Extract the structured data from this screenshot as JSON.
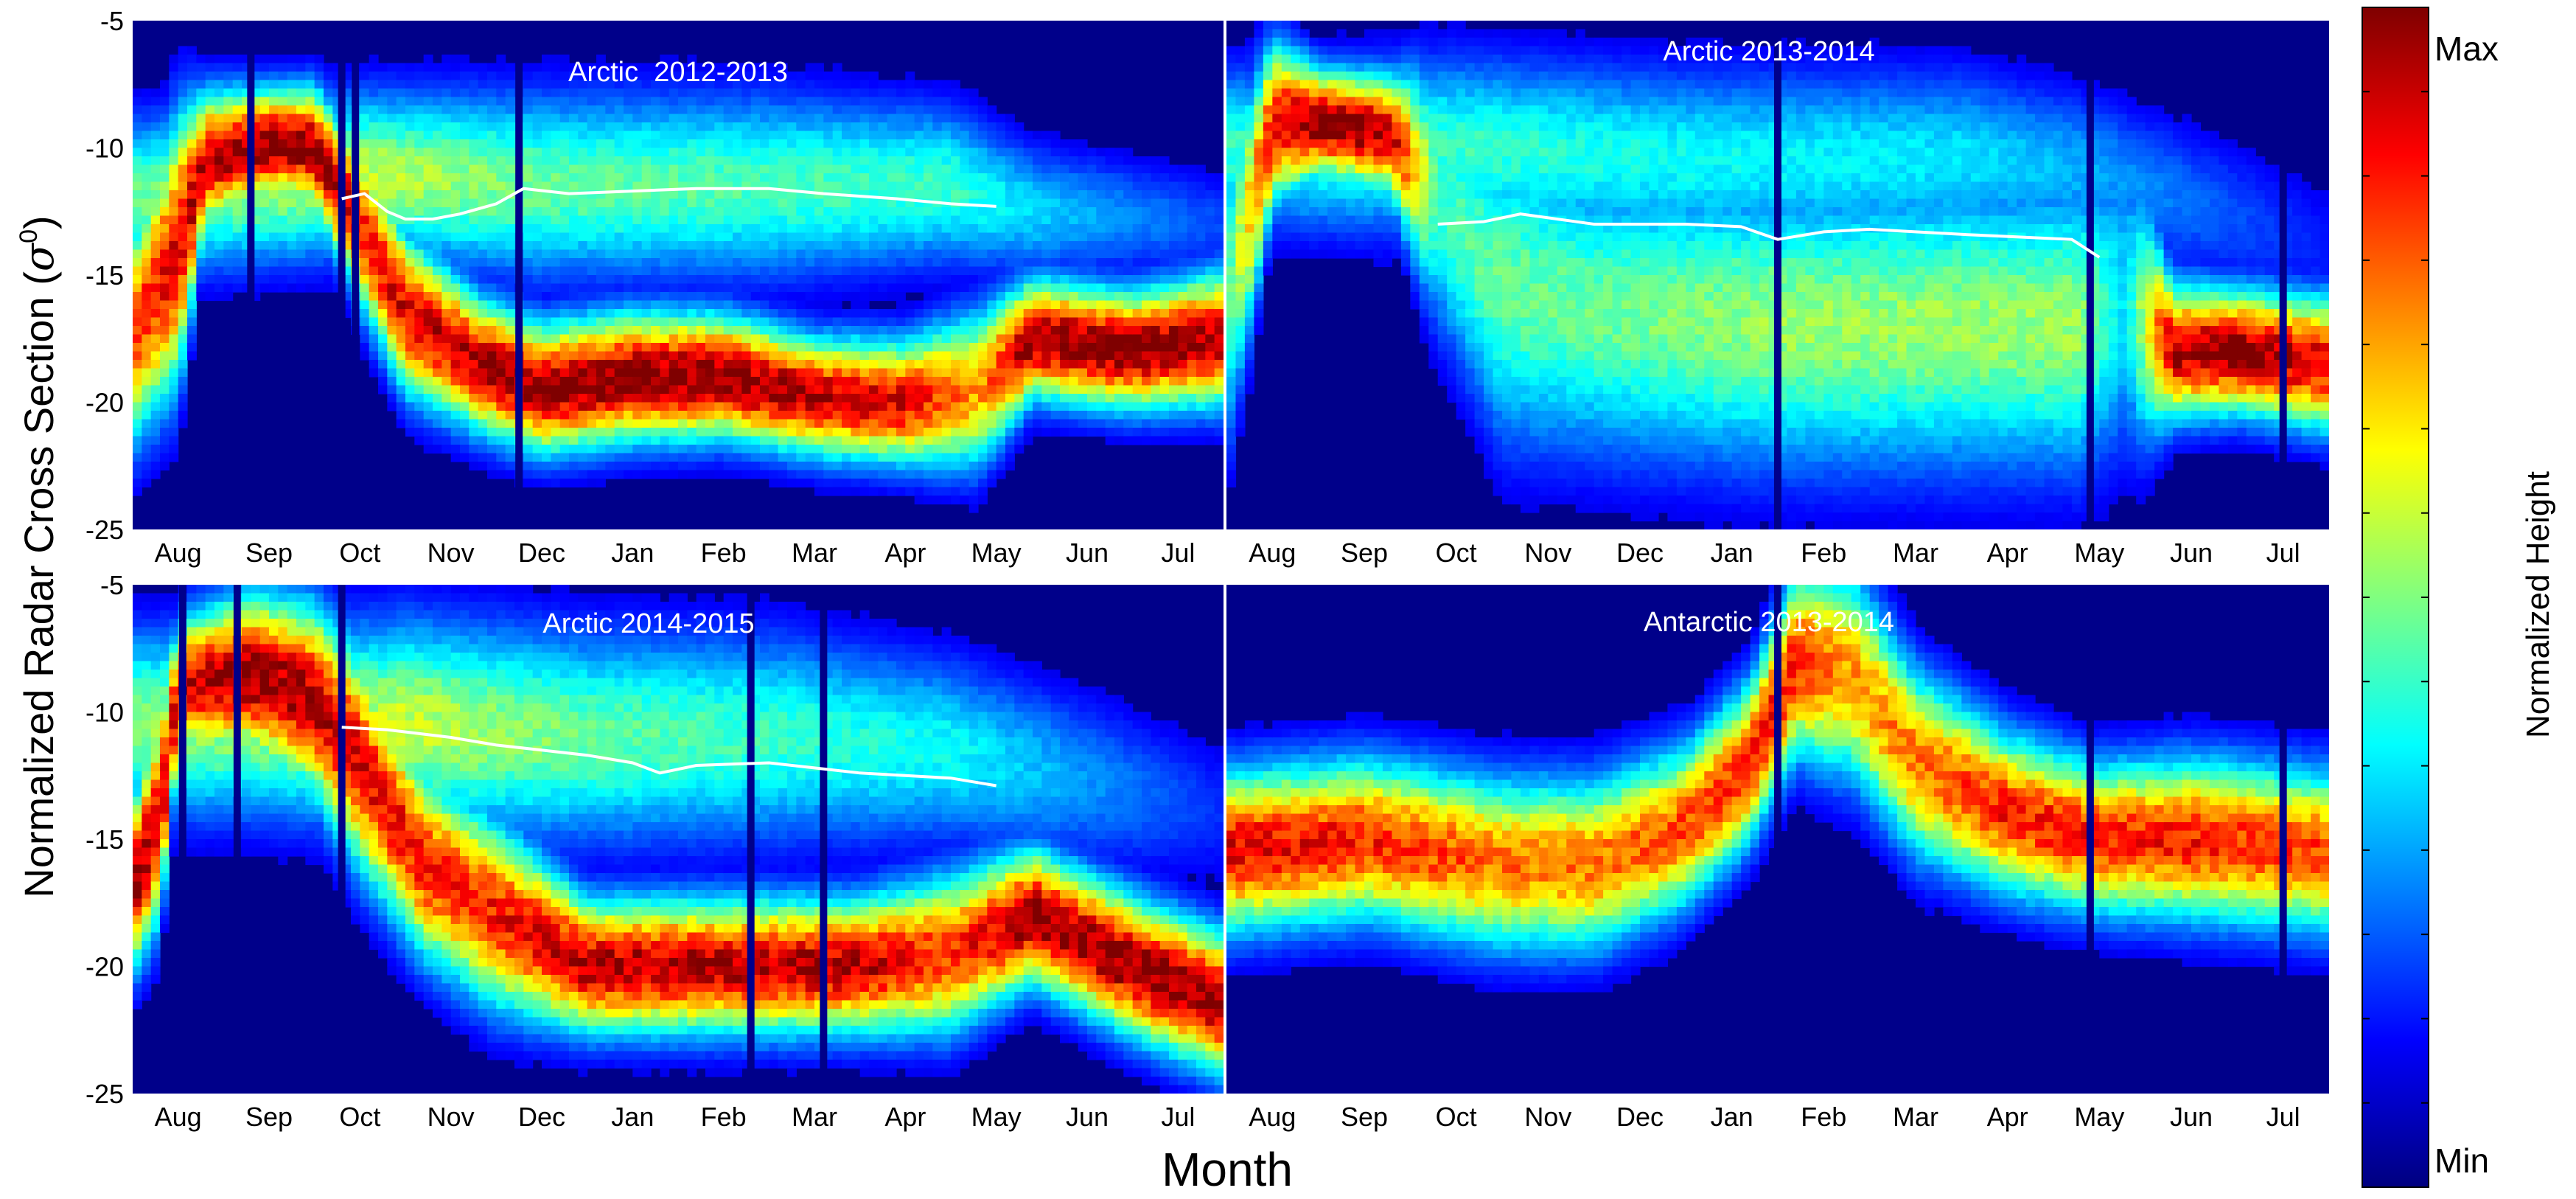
{
  "figure": {
    "ylabel": "Normalized Radar Cross Section (σ⁰)",
    "ylabel_main": "Normalized Radar Cross Section (",
    "ylabel_sigma": "σ",
    "ylabel_sup": "0",
    "ylabel_close": ")",
    "xlabel": "Month",
    "colorbar": {
      "label": "Normalized Height",
      "max_label": "Max",
      "min_label": "Min",
      "stops": [
        "#00007f",
        "#0000ff",
        "#0080ff",
        "#00ffff",
        "#80ff80",
        "#ffff00",
        "#ff8000",
        "#ff0000",
        "#7f0000"
      ]
    },
    "colors": {
      "background": "#00008a",
      "median_line": "#ffffff",
      "separator": "#ffffff"
    }
  },
  "chart_data": [
    {
      "type": "heatmap",
      "title": "Arctic  2012-2013",
      "x_tick_labels": [
        "Aug",
        "Sep",
        "Oct",
        "Nov",
        "Dec",
        "Jan",
        "Feb",
        "Mar",
        "Apr",
        "May",
        "Jun",
        "Jul"
      ],
      "y_tick_labels": [
        "-5",
        "-10",
        "-15",
        "-20",
        "-25"
      ],
      "ylim": [
        -25,
        -5
      ],
      "xlim_months": [
        0,
        12
      ],
      "show_y_ticks": true,
      "show_x_ticks": true,
      "gaps": [
        1.3,
        2.3,
        2.45,
        4.25
      ],
      "band": [
        {
          "m": 0.0,
          "c": -17.5,
          "w": 4.0,
          "a": 0.8
        },
        {
          "m": 0.5,
          "c": -14.0,
          "w": 5.0,
          "a": 0.9
        },
        {
          "m": 0.8,
          "c": -10.5,
          "w": 2.5,
          "a": 0.95
        },
        {
          "m": 1.5,
          "c": -9.8,
          "w": 2.0,
          "a": 1.0
        },
        {
          "m": 2.0,
          "c": -10.0,
          "w": 2.2,
          "a": 1.0
        },
        {
          "m": 2.5,
          "c": -13.0,
          "w": 3.0,
          "a": 0.85
        },
        {
          "m": 3.0,
          "c": -16.5,
          "w": 3.0,
          "a": 0.9
        },
        {
          "m": 3.8,
          "c": -18.5,
          "w": 2.5,
          "a": 0.95
        },
        {
          "m": 4.5,
          "c": -19.5,
          "w": 2.4,
          "a": 1.0
        },
        {
          "m": 5.5,
          "c": -19.0,
          "w": 2.4,
          "a": 1.0
        },
        {
          "m": 6.5,
          "c": -19.0,
          "w": 2.3,
          "a": 1.0
        },
        {
          "m": 7.5,
          "c": -19.8,
          "w": 2.2,
          "a": 0.95
        },
        {
          "m": 8.5,
          "c": -20.0,
          "w": 2.3,
          "a": 0.9
        },
        {
          "m": 9.3,
          "c": -19.5,
          "w": 3.0,
          "a": 0.7
        },
        {
          "m": 9.9,
          "c": -17.5,
          "w": 2.2,
          "a": 1.0
        },
        {
          "m": 11.0,
          "c": -18.0,
          "w": 2.2,
          "a": 1.0
        },
        {
          "m": 12.0,
          "c": -17.5,
          "w": 2.5,
          "a": 0.95
        }
      ],
      "upper": [
        {
          "m": 0.0,
          "c": -12.0,
          "w": 3.0,
          "a": 0.45
        },
        {
          "m": 2.5,
          "c": -11.0,
          "w": 3.0,
          "a": 0.55
        },
        {
          "m": 4.5,
          "c": -11.5,
          "w": 3.5,
          "a": 0.45
        },
        {
          "m": 7.0,
          "c": -11.5,
          "w": 3.5,
          "a": 0.42
        },
        {
          "m": 9.0,
          "c": -11.5,
          "w": 3.0,
          "a": 0.4
        },
        {
          "m": 9.9,
          "c": -12.5,
          "w": 2.5,
          "a": 0.3
        },
        {
          "m": 12.0,
          "c": -13.0,
          "w": 2.0,
          "a": 0.15
        }
      ],
      "median": {
        "months": [
          2.3,
          2.55,
          2.8,
          3.0,
          3.3,
          3.6,
          4.0,
          4.3,
          4.8,
          5.5,
          6.2,
          7.0,
          7.6,
          8.4,
          9.0,
          9.5
        ],
        "values": [
          -12.0,
          -11.8,
          -12.5,
          -12.8,
          -12.8,
          -12.6,
          -12.2,
          -11.6,
          -11.8,
          -11.7,
          -11.6,
          -11.6,
          -11.8,
          -12.0,
          -12.2,
          -12.3
        ]
      }
    },
    {
      "type": "heatmap",
      "title": "Arctic 2013-2014",
      "x_tick_labels": [
        "Aug",
        "Sep",
        "Oct",
        "Nov",
        "Dec",
        "Jan",
        "Feb",
        "Mar",
        "Apr",
        "May",
        "Jun",
        "Jul"
      ],
      "y_tick_labels": [],
      "ylim": [
        -25,
        -5
      ],
      "xlim_months": [
        0,
        12
      ],
      "show_y_ticks": false,
      "show_x_ticks": true,
      "gaps": [
        6.0,
        9.4,
        11.5
      ],
      "band": [
        {
          "m": 0.0,
          "c": -16.0,
          "w": 6.0,
          "a": 0.4
        },
        {
          "m": 0.5,
          "c": -9.0,
          "w": 3.0,
          "a": 0.9
        },
        {
          "m": 1.0,
          "c": -9.0,
          "w": 2.0,
          "a": 1.0
        },
        {
          "m": 1.8,
          "c": -9.5,
          "w": 2.2,
          "a": 0.95
        },
        {
          "m": 2.3,
          "c": -12.0,
          "w": 5.0,
          "a": 0.4
        },
        {
          "m": 3.0,
          "c": -15.5,
          "w": 6.0,
          "a": 0.45
        },
        {
          "m": 4.0,
          "c": -16.5,
          "w": 5.5,
          "a": 0.45
        },
        {
          "m": 6.0,
          "c": -17.0,
          "w": 5.5,
          "a": 0.5
        },
        {
          "m": 8.0,
          "c": -17.0,
          "w": 5.5,
          "a": 0.5
        },
        {
          "m": 9.3,
          "c": -17.0,
          "w": 5.5,
          "a": 0.5
        },
        {
          "m": 9.8,
          "c": -16.0,
          "w": 6.0,
          "a": 0.3
        },
        {
          "m": 10.3,
          "c": -18.0,
          "w": 2.5,
          "a": 0.95
        },
        {
          "m": 11.0,
          "c": -18.0,
          "w": 2.3,
          "a": 1.0
        },
        {
          "m": 12.0,
          "c": -18.5,
          "w": 2.5,
          "a": 0.9
        }
      ],
      "upper": [
        {
          "m": 0.3,
          "c": -10.0,
          "w": 3.0,
          "a": 0.4
        },
        {
          "m": 2.5,
          "c": -10.0,
          "w": 3.5,
          "a": 0.4
        },
        {
          "m": 5.0,
          "c": -10.5,
          "w": 3.5,
          "a": 0.35
        },
        {
          "m": 8.0,
          "c": -10.5,
          "w": 3.5,
          "a": 0.32
        },
        {
          "m": 9.5,
          "c": -11.0,
          "w": 3.0,
          "a": 0.25
        },
        {
          "m": 12.0,
          "c": -14.0,
          "w": 3.0,
          "a": 0.1
        }
      ],
      "median": {
        "months": [
          2.3,
          2.8,
          3.2,
          4.0,
          5.0,
          5.6,
          6.0,
          6.5,
          7.0,
          7.5,
          8.0,
          8.6,
          9.2,
          9.5
        ],
        "values": [
          -13.0,
          -12.9,
          -12.6,
          -13.0,
          -13.0,
          -13.1,
          -13.6,
          -13.3,
          -13.2,
          -13.3,
          -13.4,
          -13.5,
          -13.6,
          -14.3
        ]
      }
    },
    {
      "type": "heatmap",
      "title": "Arctic 2014-2015",
      "x_tick_labels": [
        "Aug",
        "Sep",
        "Oct",
        "Nov",
        "Dec",
        "Jan",
        "Feb",
        "Mar",
        "Apr",
        "May",
        "Jun",
        "Jul"
      ],
      "y_tick_labels": [
        "-5",
        "-10",
        "-15",
        "-20",
        "-25"
      ],
      "ylim": [
        -25,
        -5
      ],
      "xlim_months": [
        0,
        12
      ],
      "show_y_ticks": true,
      "show_x_ticks": true,
      "gaps": [
        0.55,
        1.15,
        2.3,
        6.8,
        7.6
      ],
      "band": [
        {
          "m": 0.0,
          "c": -17.0,
          "w": 3.0,
          "a": 1.0
        },
        {
          "m": 0.3,
          "c": -14.0,
          "w": 4.0,
          "a": 0.9
        },
        {
          "m": 0.5,
          "c": -9.0,
          "w": 2.5,
          "a": 0.9
        },
        {
          "m": 1.3,
          "c": -8.5,
          "w": 3.0,
          "a": 1.0
        },
        {
          "m": 2.0,
          "c": -9.5,
          "w": 3.5,
          "a": 0.95
        },
        {
          "m": 2.5,
          "c": -12.0,
          "w": 4.0,
          "a": 0.9
        },
        {
          "m": 3.2,
          "c": -16.0,
          "w": 3.5,
          "a": 0.85
        },
        {
          "m": 4.0,
          "c": -18.0,
          "w": 3.5,
          "a": 0.85
        },
        {
          "m": 5.0,
          "c": -20.0,
          "w": 2.5,
          "a": 0.95
        },
        {
          "m": 6.5,
          "c": -20.0,
          "w": 2.5,
          "a": 0.95
        },
        {
          "m": 8.0,
          "c": -20.0,
          "w": 2.5,
          "a": 0.95
        },
        {
          "m": 9.0,
          "c": -19.5,
          "w": 3.0,
          "a": 0.8
        },
        {
          "m": 9.9,
          "c": -18.0,
          "w": 2.5,
          "a": 1.0
        },
        {
          "m": 11.0,
          "c": -20.0,
          "w": 2.6,
          "a": 1.0
        },
        {
          "m": 12.0,
          "c": -21.5,
          "w": 2.6,
          "a": 1.0
        }
      ],
      "upper": [
        {
          "m": 1.3,
          "c": -10.5,
          "w": 3.5,
          "a": 0.5
        },
        {
          "m": 3.0,
          "c": -10.5,
          "w": 4.0,
          "a": 0.55
        },
        {
          "m": 5.0,
          "c": -11.0,
          "w": 4.0,
          "a": 0.45
        },
        {
          "m": 7.0,
          "c": -11.0,
          "w": 4.0,
          "a": 0.4
        },
        {
          "m": 9.0,
          "c": -11.5,
          "w": 3.5,
          "a": 0.35
        },
        {
          "m": 12.0,
          "c": -14.0,
          "w": 3.0,
          "a": 0.12
        }
      ],
      "median": {
        "months": [
          2.3,
          2.8,
          3.5,
          4.0,
          4.5,
          5.0,
          5.5,
          5.8,
          6.2,
          7.0,
          7.5,
          8.0,
          8.5,
          9.0,
          9.5
        ],
        "values": [
          -10.6,
          -10.7,
          -11.0,
          -11.3,
          -11.5,
          -11.7,
          -12.0,
          -12.4,
          -12.1,
          -12.0,
          -12.2,
          -12.4,
          -12.5,
          -12.6,
          -12.9
        ]
      }
    },
    {
      "type": "heatmap",
      "title": "Antarctic 2013-2014",
      "x_tick_labels": [
        "Aug",
        "Sep",
        "Oct",
        "Nov",
        "Dec",
        "Jan",
        "Feb",
        "Mar",
        "Apr",
        "May",
        "Jun",
        "Jul"
      ],
      "y_tick_labels": [],
      "ylim": [
        -25,
        -5
      ],
      "xlim_months": [
        0,
        12
      ],
      "show_y_ticks": false,
      "show_x_ticks": true,
      "gaps": [
        6.0,
        9.4,
        11.5
      ],
      "band": [
        {
          "m": 0.0,
          "c": -15.5,
          "w": 3.0,
          "a": 0.9
        },
        {
          "m": 1.5,
          "c": -15.0,
          "w": 3.0,
          "a": 0.85
        },
        {
          "m": 3.0,
          "c": -16.0,
          "w": 3.2,
          "a": 0.75
        },
        {
          "m": 4.0,
          "c": -16.0,
          "w": 3.2,
          "a": 0.75
        },
        {
          "m": 5.0,
          "c": -14.5,
          "w": 3.0,
          "a": 0.8
        },
        {
          "m": 5.7,
          "c": -12.0,
          "w": 3.0,
          "a": 0.85
        },
        {
          "m": 6.2,
          "c": -8.0,
          "w": 3.5,
          "a": 0.85
        },
        {
          "m": 6.8,
          "c": -8.5,
          "w": 4.0,
          "a": 0.7
        },
        {
          "m": 7.5,
          "c": -12.0,
          "w": 3.5,
          "a": 0.75
        },
        {
          "m": 8.5,
          "c": -14.0,
          "w": 3.0,
          "a": 0.85
        },
        {
          "m": 9.5,
          "c": -15.0,
          "w": 2.8,
          "a": 0.85
        },
        {
          "m": 10.5,
          "c": -15.0,
          "w": 3.0,
          "a": 0.85
        },
        {
          "m": 12.0,
          "c": -15.5,
          "w": 3.0,
          "a": 0.8
        }
      ],
      "upper": [],
      "median": null
    }
  ]
}
